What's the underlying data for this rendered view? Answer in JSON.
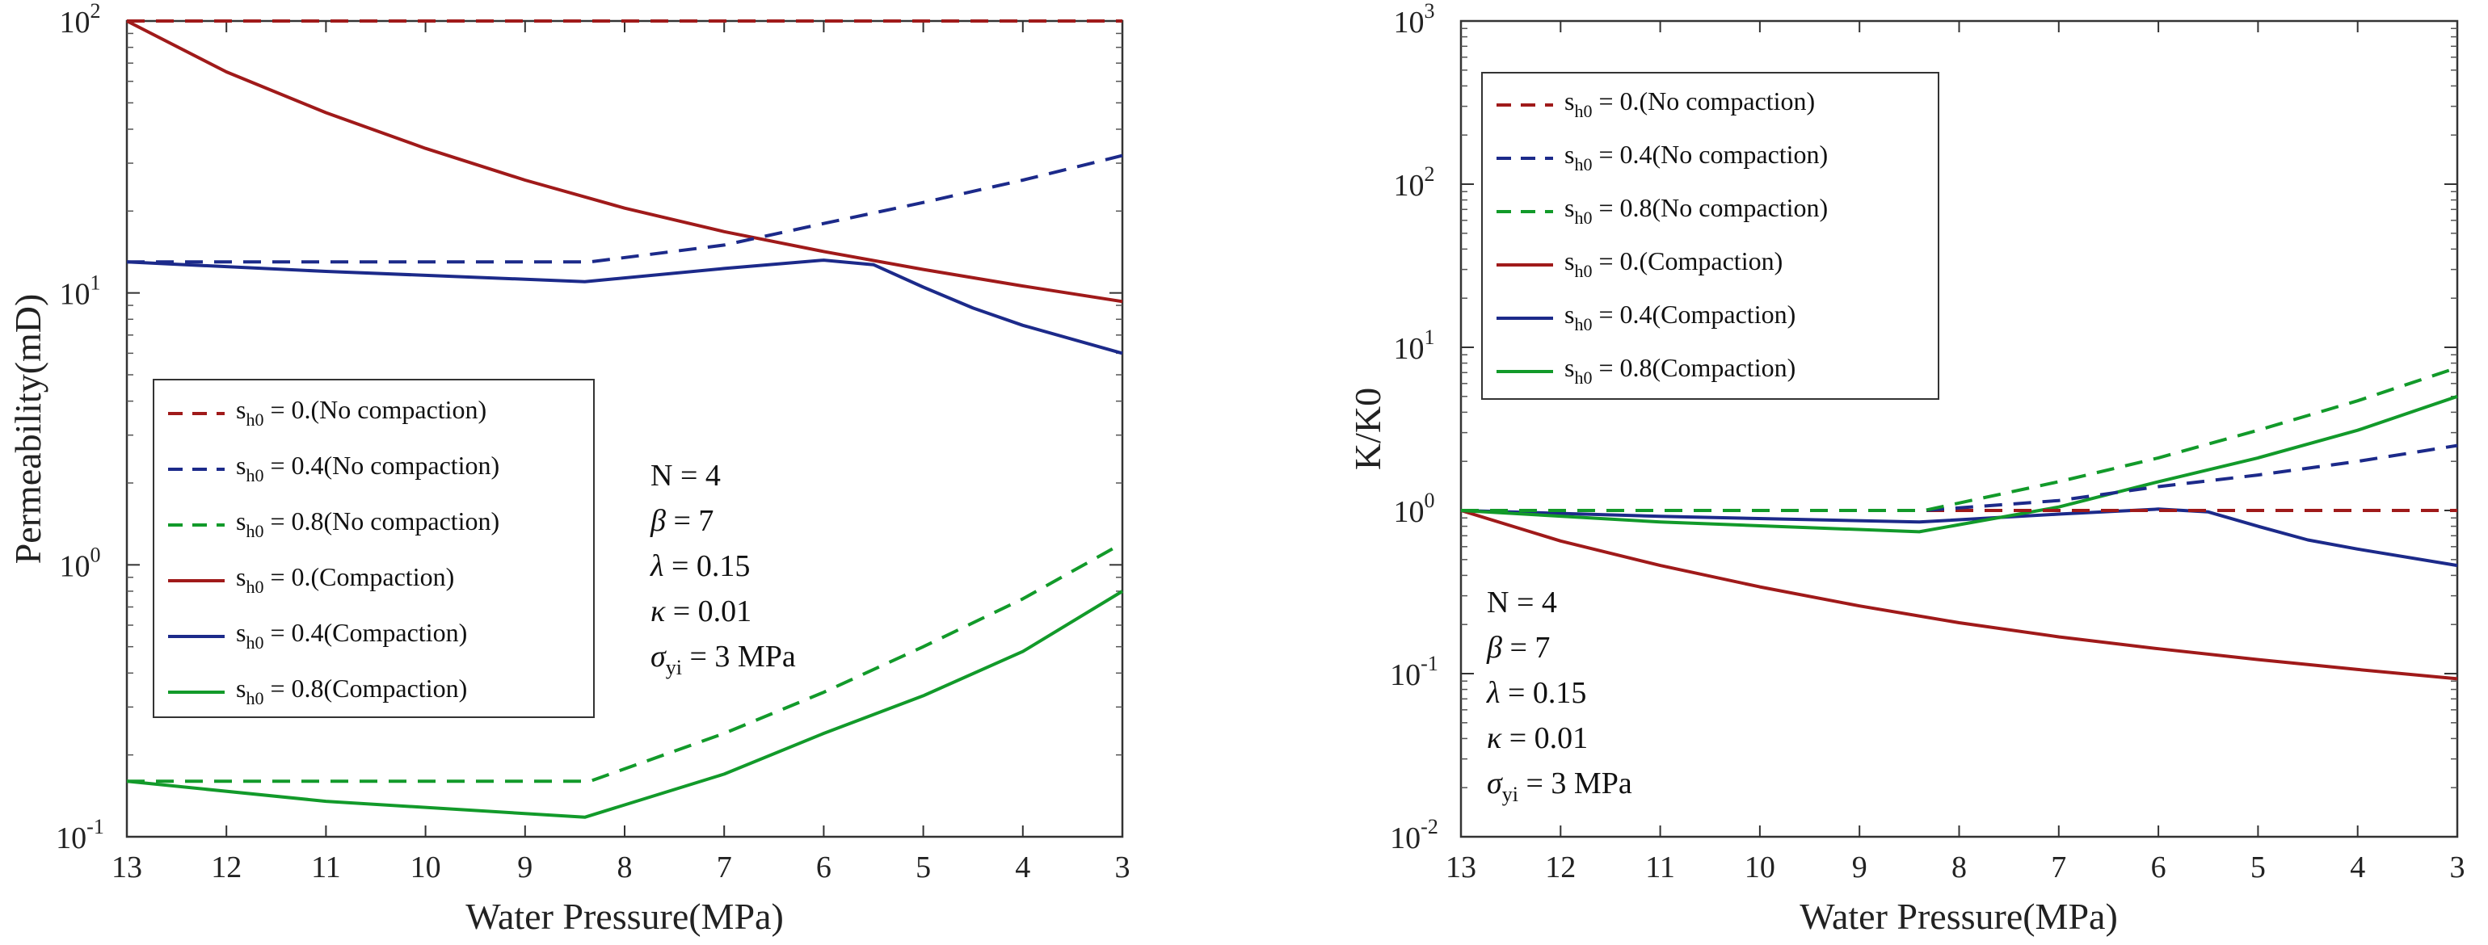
{
  "colors": {
    "red": "#a01a1a",
    "blue": "#1c2a8a",
    "green": "#129a2a"
  },
  "chart_data": [
    {
      "type": "line",
      "xlabel": "Water Pressure(MPa)",
      "ylabel": "Permeability(mD)",
      "xlim": [
        13,
        3
      ],
      "ylim": [
        0.1,
        100
      ],
      "y_scale": "log",
      "x_ticks": [
        "13",
        "12",
        "11",
        "10",
        "9",
        "8",
        "7",
        "6",
        "5",
        "4",
        "3"
      ],
      "y_ticks": [
        {
          "value": 0.1,
          "base": "10",
          "exp": "-1"
        },
        {
          "value": 1,
          "base": "10",
          "exp": "0"
        },
        {
          "value": 10,
          "base": "10",
          "exp": "1"
        },
        {
          "value": 100,
          "base": "10",
          "exp": "2"
        }
      ],
      "legend_position": "lower-left",
      "series": [
        {
          "label_pre": "s",
          "label_sub": "h0",
          "label_post": " = 0.(No compaction)",
          "color": "red",
          "dash": true,
          "points": [
            [
              13,
              100
            ],
            [
              3,
              100
            ]
          ]
        },
        {
          "label_pre": "s",
          "label_sub": "h0",
          "label_post": " = 0.4(No compaction)",
          "color": "blue",
          "dash": true,
          "points": [
            [
              13,
              13
            ],
            [
              8.35,
              13
            ],
            [
              7,
              15
            ],
            [
              6,
              18
            ],
            [
              5,
              21.5
            ],
            [
              4,
              26
            ],
            [
              3,
              32
            ]
          ]
        },
        {
          "label_pre": "s",
          "label_sub": "h0",
          "label_post": " = 0.8(No compaction)",
          "color": "green",
          "dash": true,
          "points": [
            [
              13,
              0.16
            ],
            [
              8.35,
              0.16
            ],
            [
              7,
              0.24
            ],
            [
              6,
              0.34
            ],
            [
              5,
              0.5
            ],
            [
              4,
              0.75
            ],
            [
              3,
              1.2
            ]
          ]
        },
        {
          "label_pre": "s",
          "label_sub": "h0",
          "label_post": " = 0.(Compaction)",
          "color": "red",
          "dash": false,
          "points": [
            [
              13,
              100
            ],
            [
              12,
              65
            ],
            [
              11,
              46
            ],
            [
              10,
              34
            ],
            [
              9,
              26
            ],
            [
              8,
              20.5
            ],
            [
              7,
              16.8
            ],
            [
              6,
              14.2
            ],
            [
              5,
              12.2
            ],
            [
              4,
              10.6
            ],
            [
              3,
              9.3
            ]
          ]
        },
        {
          "label_pre": "s",
          "label_sub": "h0",
          "label_post": " = 0.4(Compaction)",
          "color": "blue",
          "dash": false,
          "points": [
            [
              13,
              13
            ],
            [
              11,
              12
            ],
            [
              8.4,
              11
            ],
            [
              7,
              12.3
            ],
            [
              6,
              13.2
            ],
            [
              5.5,
              12.7
            ],
            [
              5,
              10.5
            ],
            [
              4.5,
              8.8
            ],
            [
              4,
              7.6
            ],
            [
              3,
              6
            ]
          ]
        },
        {
          "label_pre": "s",
          "label_sub": "h0",
          "label_post": " = 0.8(Compaction)",
          "color": "green",
          "dash": false,
          "points": [
            [
              13,
              0.16
            ],
            [
              11,
              0.135
            ],
            [
              8.4,
              0.118
            ],
            [
              7,
              0.17
            ],
            [
              6,
              0.24
            ],
            [
              5,
              0.33
            ],
            [
              4,
              0.48
            ],
            [
              3,
              0.8
            ]
          ]
        }
      ]
    },
    {
      "type": "line",
      "xlabel": "Water Pressure(MPa)",
      "ylabel": "K/K0",
      "xlim": [
        13,
        3
      ],
      "ylim": [
        0.01,
        1000
      ],
      "y_scale": "log",
      "x_ticks": [
        "13",
        "12",
        "11",
        "10",
        "9",
        "8",
        "7",
        "6",
        "5",
        "4",
        "3"
      ],
      "y_ticks": [
        {
          "value": 0.01,
          "base": "10",
          "exp": "-2"
        },
        {
          "value": 0.1,
          "base": "10",
          "exp": "-1"
        },
        {
          "value": 1,
          "base": "10",
          "exp": "0"
        },
        {
          "value": 10,
          "base": "10",
          "exp": "1"
        },
        {
          "value": 100,
          "base": "10",
          "exp": "2"
        },
        {
          "value": 1000,
          "base": "10",
          "exp": "3"
        }
      ],
      "legend_position": "upper-left",
      "series": [
        {
          "label_pre": "s",
          "label_sub": "h0",
          "label_post": " = 0.(No compaction)",
          "color": "red",
          "dash": true,
          "points": [
            [
              13,
              1
            ],
            [
              3,
              1
            ]
          ]
        },
        {
          "label_pre": "s",
          "label_sub": "h0",
          "label_post": " = 0.4(No compaction)",
          "color": "blue",
          "dash": true,
          "points": [
            [
              13,
              1
            ],
            [
              8.35,
              1
            ],
            [
              7,
              1.15
            ],
            [
              6,
              1.4
            ],
            [
              5,
              1.65
            ],
            [
              4,
              2
            ],
            [
              3,
              2.5
            ]
          ]
        },
        {
          "label_pre": "s",
          "label_sub": "h0",
          "label_post": " = 0.8(No compaction)",
          "color": "green",
          "dash": true,
          "points": [
            [
              13,
              1
            ],
            [
              8.35,
              1
            ],
            [
              7,
              1.5
            ],
            [
              6,
              2.1
            ],
            [
              5,
              3.1
            ],
            [
              4,
              4.7
            ],
            [
              3,
              7.5
            ]
          ]
        },
        {
          "label_pre": "s",
          "label_sub": "h0",
          "label_post": " = 0.(Compaction)",
          "color": "red",
          "dash": false,
          "points": [
            [
              13,
              1
            ],
            [
              12,
              0.65
            ],
            [
              11,
              0.46
            ],
            [
              10,
              0.34
            ],
            [
              9,
              0.26
            ],
            [
              8,
              0.205
            ],
            [
              7,
              0.168
            ],
            [
              6,
              0.142
            ],
            [
              5,
              0.122
            ],
            [
              4,
              0.106
            ],
            [
              3,
              0.093
            ]
          ]
        },
        {
          "label_pre": "s",
          "label_sub": "h0",
          "label_post": " = 0.4(Compaction)",
          "color": "blue",
          "dash": false,
          "points": [
            [
              13,
              1
            ],
            [
              11,
              0.92
            ],
            [
              8.4,
              0.85
            ],
            [
              7,
              0.95
            ],
            [
              6,
              1.02
            ],
            [
              5.5,
              0.98
            ],
            [
              5,
              0.8
            ],
            [
              4.5,
              0.66
            ],
            [
              4,
              0.58
            ],
            [
              3,
              0.46
            ]
          ]
        },
        {
          "label_pre": "s",
          "label_sub": "h0",
          "label_post": " = 0.8(Compaction)",
          "color": "green",
          "dash": false,
          "points": [
            [
              13,
              1
            ],
            [
              11,
              0.85
            ],
            [
              8.4,
              0.74
            ],
            [
              7,
              1.05
            ],
            [
              6,
              1.5
            ],
            [
              5,
              2.1
            ],
            [
              4,
              3.1
            ],
            [
              3,
              5
            ]
          ]
        }
      ]
    }
  ],
  "annotation": {
    "line1": "N = 4",
    "line2_sym": "β",
    "line2_rest": " = 7",
    "line3_sym": "λ",
    "line3_rest": "  = 0.15",
    "line4_sym": "κ",
    "line4_rest": " = 0.01",
    "line5_sym": "σ",
    "line5_sub": "yi",
    "line5_rest": " = 3 MPa"
  }
}
